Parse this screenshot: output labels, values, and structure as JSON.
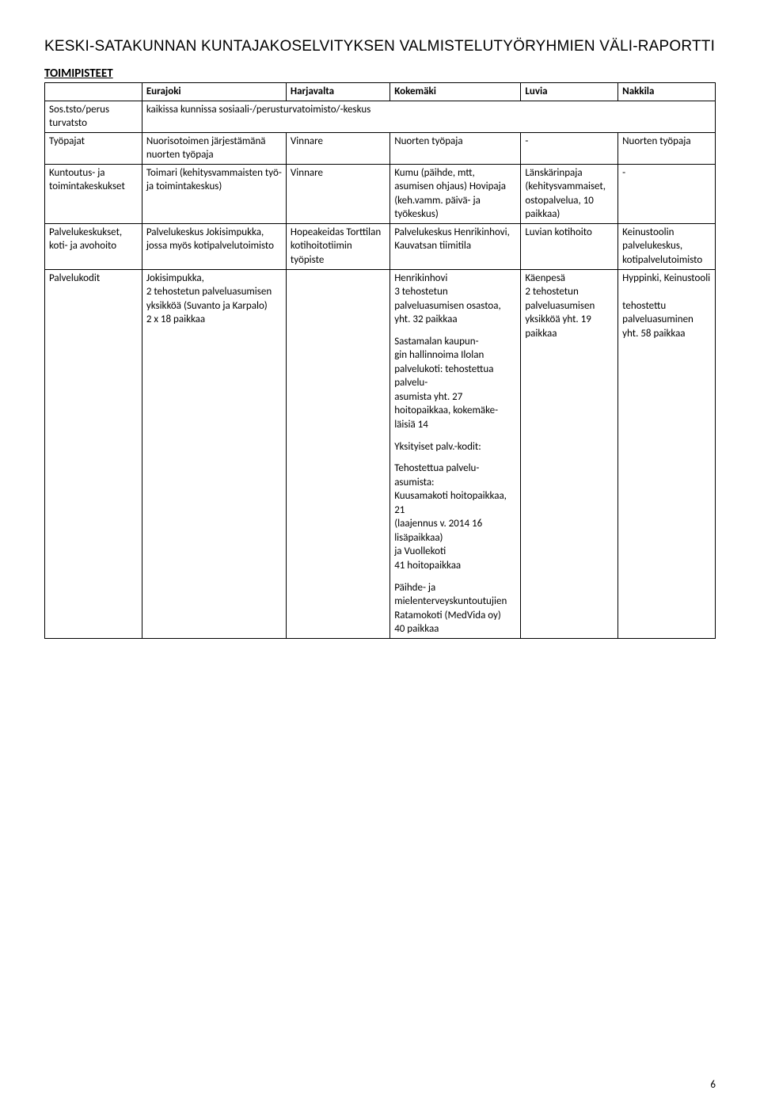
{
  "title": "KESKI-SATAKUNNAN KUNTAJAKOSELVITYKSEN VALMISTELUTYÖRYHMIEN VÄLI-RAPORTTI",
  "sectionHeading": "TOIMIPISTEET",
  "pageNumber": "6",
  "columns": [
    "",
    "Eurajoki",
    "Harjavalta",
    "Kokemäki",
    "Luvia",
    "Nakkila"
  ],
  "rows": {
    "r0": {
      "label": "Sos.tsto/perus\nturvatsto",
      "col1": "kaikissa kunnissa sosiaali-/perusturvatoimisto/-keskus"
    },
    "r1": {
      "label": "Työpajat",
      "c1": "Nuorisotoimen järjestämänä nuorten työpaja",
      "c2": "Vinnare",
      "c3": "Nuorten työpaja",
      "c4": "-",
      "c5": "Nuorten työpaja"
    },
    "r2": {
      "label": "Kuntoutus- ja toimintakeskukset",
      "c1": "Toimari (kehitysvammaisten työ- ja toimintakeskus)",
      "c2": "Vinnare",
      "c3": "Kumu (päihde, mtt, asumisen ohjaus) Hovipaja (keh.vamm. päivä- ja työkeskus)",
      "c4": "Länskärinpaja (kehitysvammaiset, ostopalvelua, 10 paikkaa)",
      "c5": "-"
    },
    "r3": {
      "label": "Palvelukeskukset, koti- ja avohoito",
      "c1": "Palvelukeskus Jokisimpukka, jossa myös kotipalvelutoimisto",
      "c2": "Hopeakeidas Torttilan kotihoitotiimin työpiste",
      "c3": "Palvelukeskus Henrikinhovi, Kauvatsan tiimitila",
      "c4": "Luvian kotihoito",
      "c5": "Keinustoolin palvelukeskus, kotipalvelutoimisto"
    },
    "r4": {
      "label": "Palvelukodit",
      "c1": "Jokisimpukka,\n2 tehostetun palveluasumisen yksikköä (Suvanto ja Karpalo)\n2 x 18 paikkaa",
      "c3p1": "Henrikinhovi\n3  tehostetun palveluasumisen osastoa, yht. 32 paikkaa",
      "c3p2": "Sastamalan kaupun-\ngin hallinnoima Ilolan palvelukoti: tehostettua palvelu-\nasumista yht. 27 hoitopaikkaa, kokemäke-\nläisiä 14",
      "c3p3": "Yksityiset palv.-kodit:",
      "c3p4": "Tehostettua palvelu-\nasumista:\nKuusamakoti hoitopaikkaa, 21\n (laajennus v. 2014 16 lisäpaikkaa)\n ja Vuollekoti\n41 hoitopaikkaa",
      "c3p5": "Päihde- ja mielenterveyskuntoutujien\n Ratamokoti (MedVida oy)\n40 paikkaa",
      "c4": "Käenpesä\n2 tehostetun palveluasumisen yksikköä yht. 19 paikkaa",
      "c5": "Hyppinki, Keinustooli\n\ntehostettu palveluasuminen yht. 58 paikkaa"
    }
  }
}
